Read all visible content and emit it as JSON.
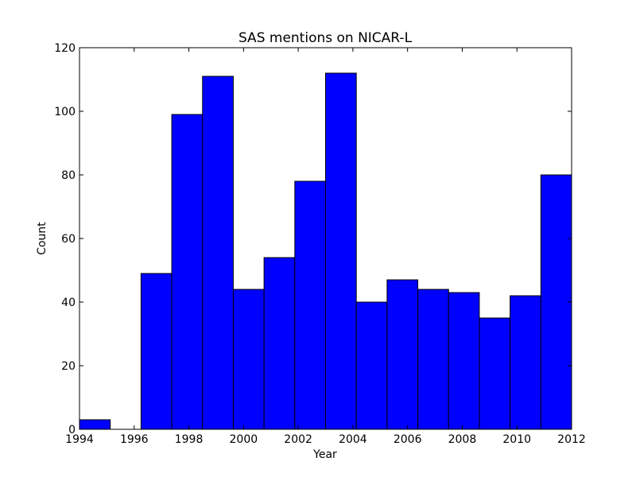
{
  "chart_data": {
    "type": "bar",
    "title": "SAS mentions on NICAR-L",
    "xlabel": "Year",
    "ylabel": "Count",
    "xlim": [
      1994,
      2012
    ],
    "ylim": [
      0,
      120
    ],
    "xticks": [
      1994,
      1996,
      1998,
      2000,
      2002,
      2004,
      2006,
      2008,
      2010,
      2012
    ],
    "yticks": [
      0,
      20,
      40,
      60,
      80,
      100,
      120
    ],
    "bins": 16,
    "values": [
      3,
      0,
      49,
      99,
      111,
      44,
      54,
      78,
      112,
      40,
      47,
      44,
      43,
      35,
      42,
      80
    ],
    "grid": false,
    "bar_color": "#0000ff",
    "edge_color": "#000000"
  }
}
